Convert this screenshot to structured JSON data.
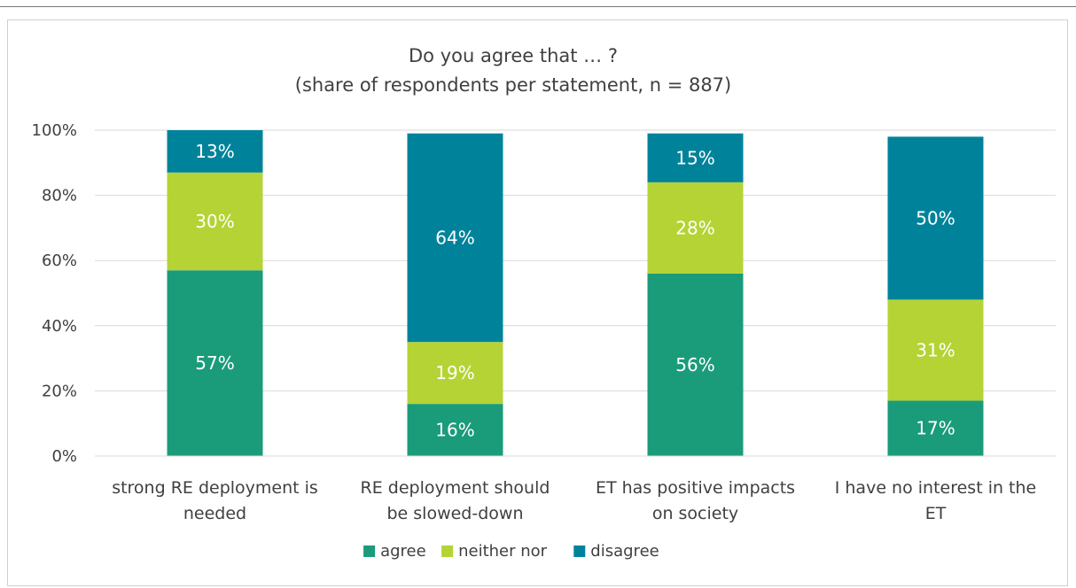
{
  "chart_data": {
    "type": "bar",
    "stacked": true,
    "title": [
      "Do you agree that … ?",
      "(share of respondents per statement, n = 887)"
    ],
    "categories": [
      [
        "strong RE deployment is",
        "needed"
      ],
      [
        "RE deployment should",
        "be slowed-down"
      ],
      [
        "ET has positive impacts",
        "on society"
      ],
      [
        "I have no interest in the",
        "ET"
      ]
    ],
    "series": [
      {
        "name": "agree",
        "color": "#1a9b7a",
        "values": [
          57,
          16,
          56,
          17
        ],
        "labels": [
          "57%",
          "16%",
          "56%",
          "17%"
        ]
      },
      {
        "name": "neither nor",
        "color": "#b5d334",
        "values": [
          30,
          19,
          28,
          31
        ],
        "labels": [
          "30%",
          "19%",
          "28%",
          "31%"
        ]
      },
      {
        "name": "disagree",
        "color": "#00839a",
        "values": [
          13,
          64,
          15,
          50
        ],
        "labels": [
          "13%",
          "64%",
          "15%",
          "50%"
        ]
      }
    ],
    "ylim": [
      0,
      100
    ],
    "yticks": [
      0,
      20,
      40,
      60,
      80,
      100
    ],
    "ytick_labels": [
      "0%",
      "20%",
      "40%",
      "60%",
      "80%",
      "100%"
    ],
    "grid": true,
    "legend_position": "bottom"
  }
}
